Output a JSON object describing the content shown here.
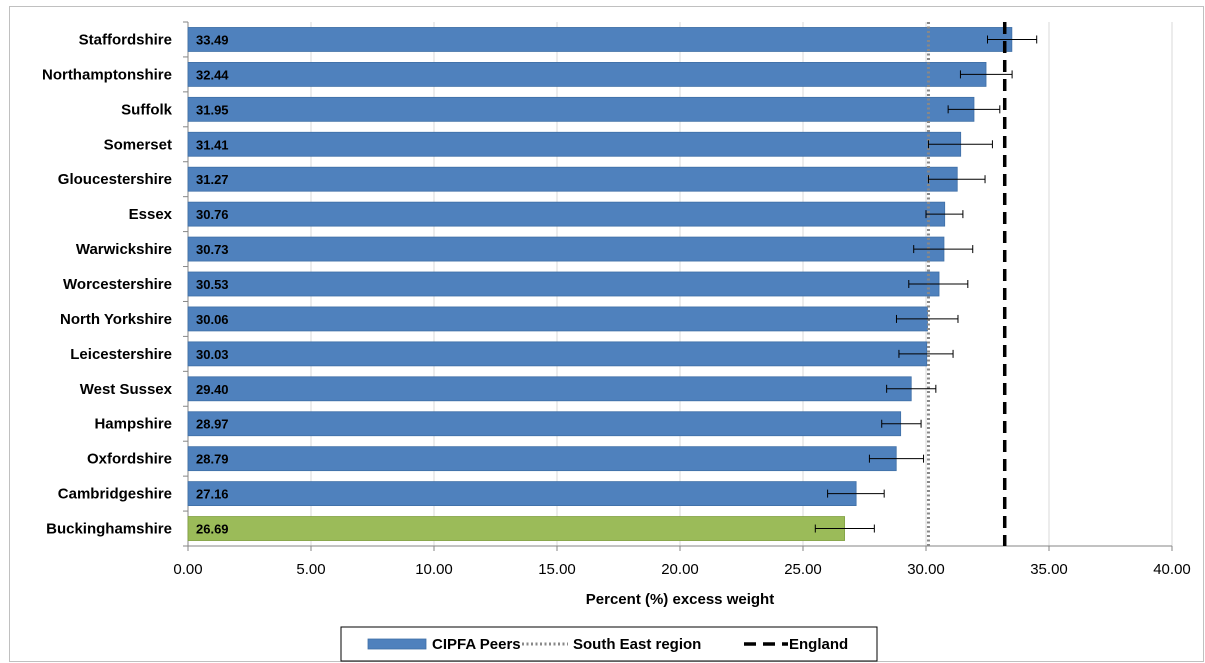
{
  "chart_data": {
    "type": "bar",
    "orientation": "horizontal",
    "categories": [
      "Staffordshire",
      "Northamptonshire",
      "Suffolk",
      "Somerset",
      "Gloucestershire",
      "Essex",
      "Warwickshire",
      "Worcestershire",
      "North Yorkshire",
      "Leicestershire",
      "West Sussex",
      "Hampshire",
      "Oxfordshire",
      "Cambridgeshire",
      "Buckinghamshire"
    ],
    "values": [
      33.49,
      32.44,
      31.95,
      31.41,
      31.27,
      30.76,
      30.73,
      30.53,
      30.06,
      30.03,
      29.4,
      28.97,
      28.79,
      27.16,
      26.69
    ],
    "value_labels": [
      "33.49",
      "32.44",
      "31.95",
      "31.41",
      "31.27",
      "30.76",
      "30.73",
      "30.53",
      "30.06",
      "30.03",
      "29.40",
      "28.97",
      "28.79",
      "27.16",
      "26.69"
    ],
    "ci_lower": [
      32.5,
      31.4,
      30.9,
      30.1,
      30.1,
      30.0,
      29.5,
      29.3,
      28.8,
      28.9,
      28.4,
      28.2,
      27.7,
      26.0,
      25.5
    ],
    "ci_upper": [
      34.5,
      33.5,
      33.0,
      32.7,
      32.4,
      31.5,
      31.9,
      31.7,
      31.3,
      31.1,
      30.4,
      29.8,
      29.9,
      28.3,
      27.9
    ],
    "highlight_category": "Buckinghamshire",
    "reference_lines": [
      {
        "name": "South East region",
        "value": 30.1,
        "style": "dotted",
        "color": "#888888"
      },
      {
        "name": "England",
        "value": 33.2,
        "style": "dashed",
        "color": "#000000"
      }
    ],
    "xlim": [
      0,
      40
    ],
    "x_ticks": [
      "0.00",
      "5.00",
      "10.00",
      "15.00",
      "20.00",
      "25.00",
      "30.00",
      "35.00",
      "40.00"
    ],
    "xlabel": "Percent (%) excess weight",
    "grid": true,
    "legend_position": "bottom",
    "legend": [
      {
        "label": "CIPFA Peers",
        "kind": "bar"
      },
      {
        "label": "South East region",
        "kind": "dotted"
      },
      {
        "label": "England",
        "kind": "dashed"
      }
    ],
    "colors": {
      "bar": "#4f81bd",
      "bar_border": "#3f6fa6",
      "highlight": "#9bbb59",
      "highlight_border": "#7f9f3f",
      "grid": "#d9d9d9",
      "errorbar": "#000000"
    }
  }
}
